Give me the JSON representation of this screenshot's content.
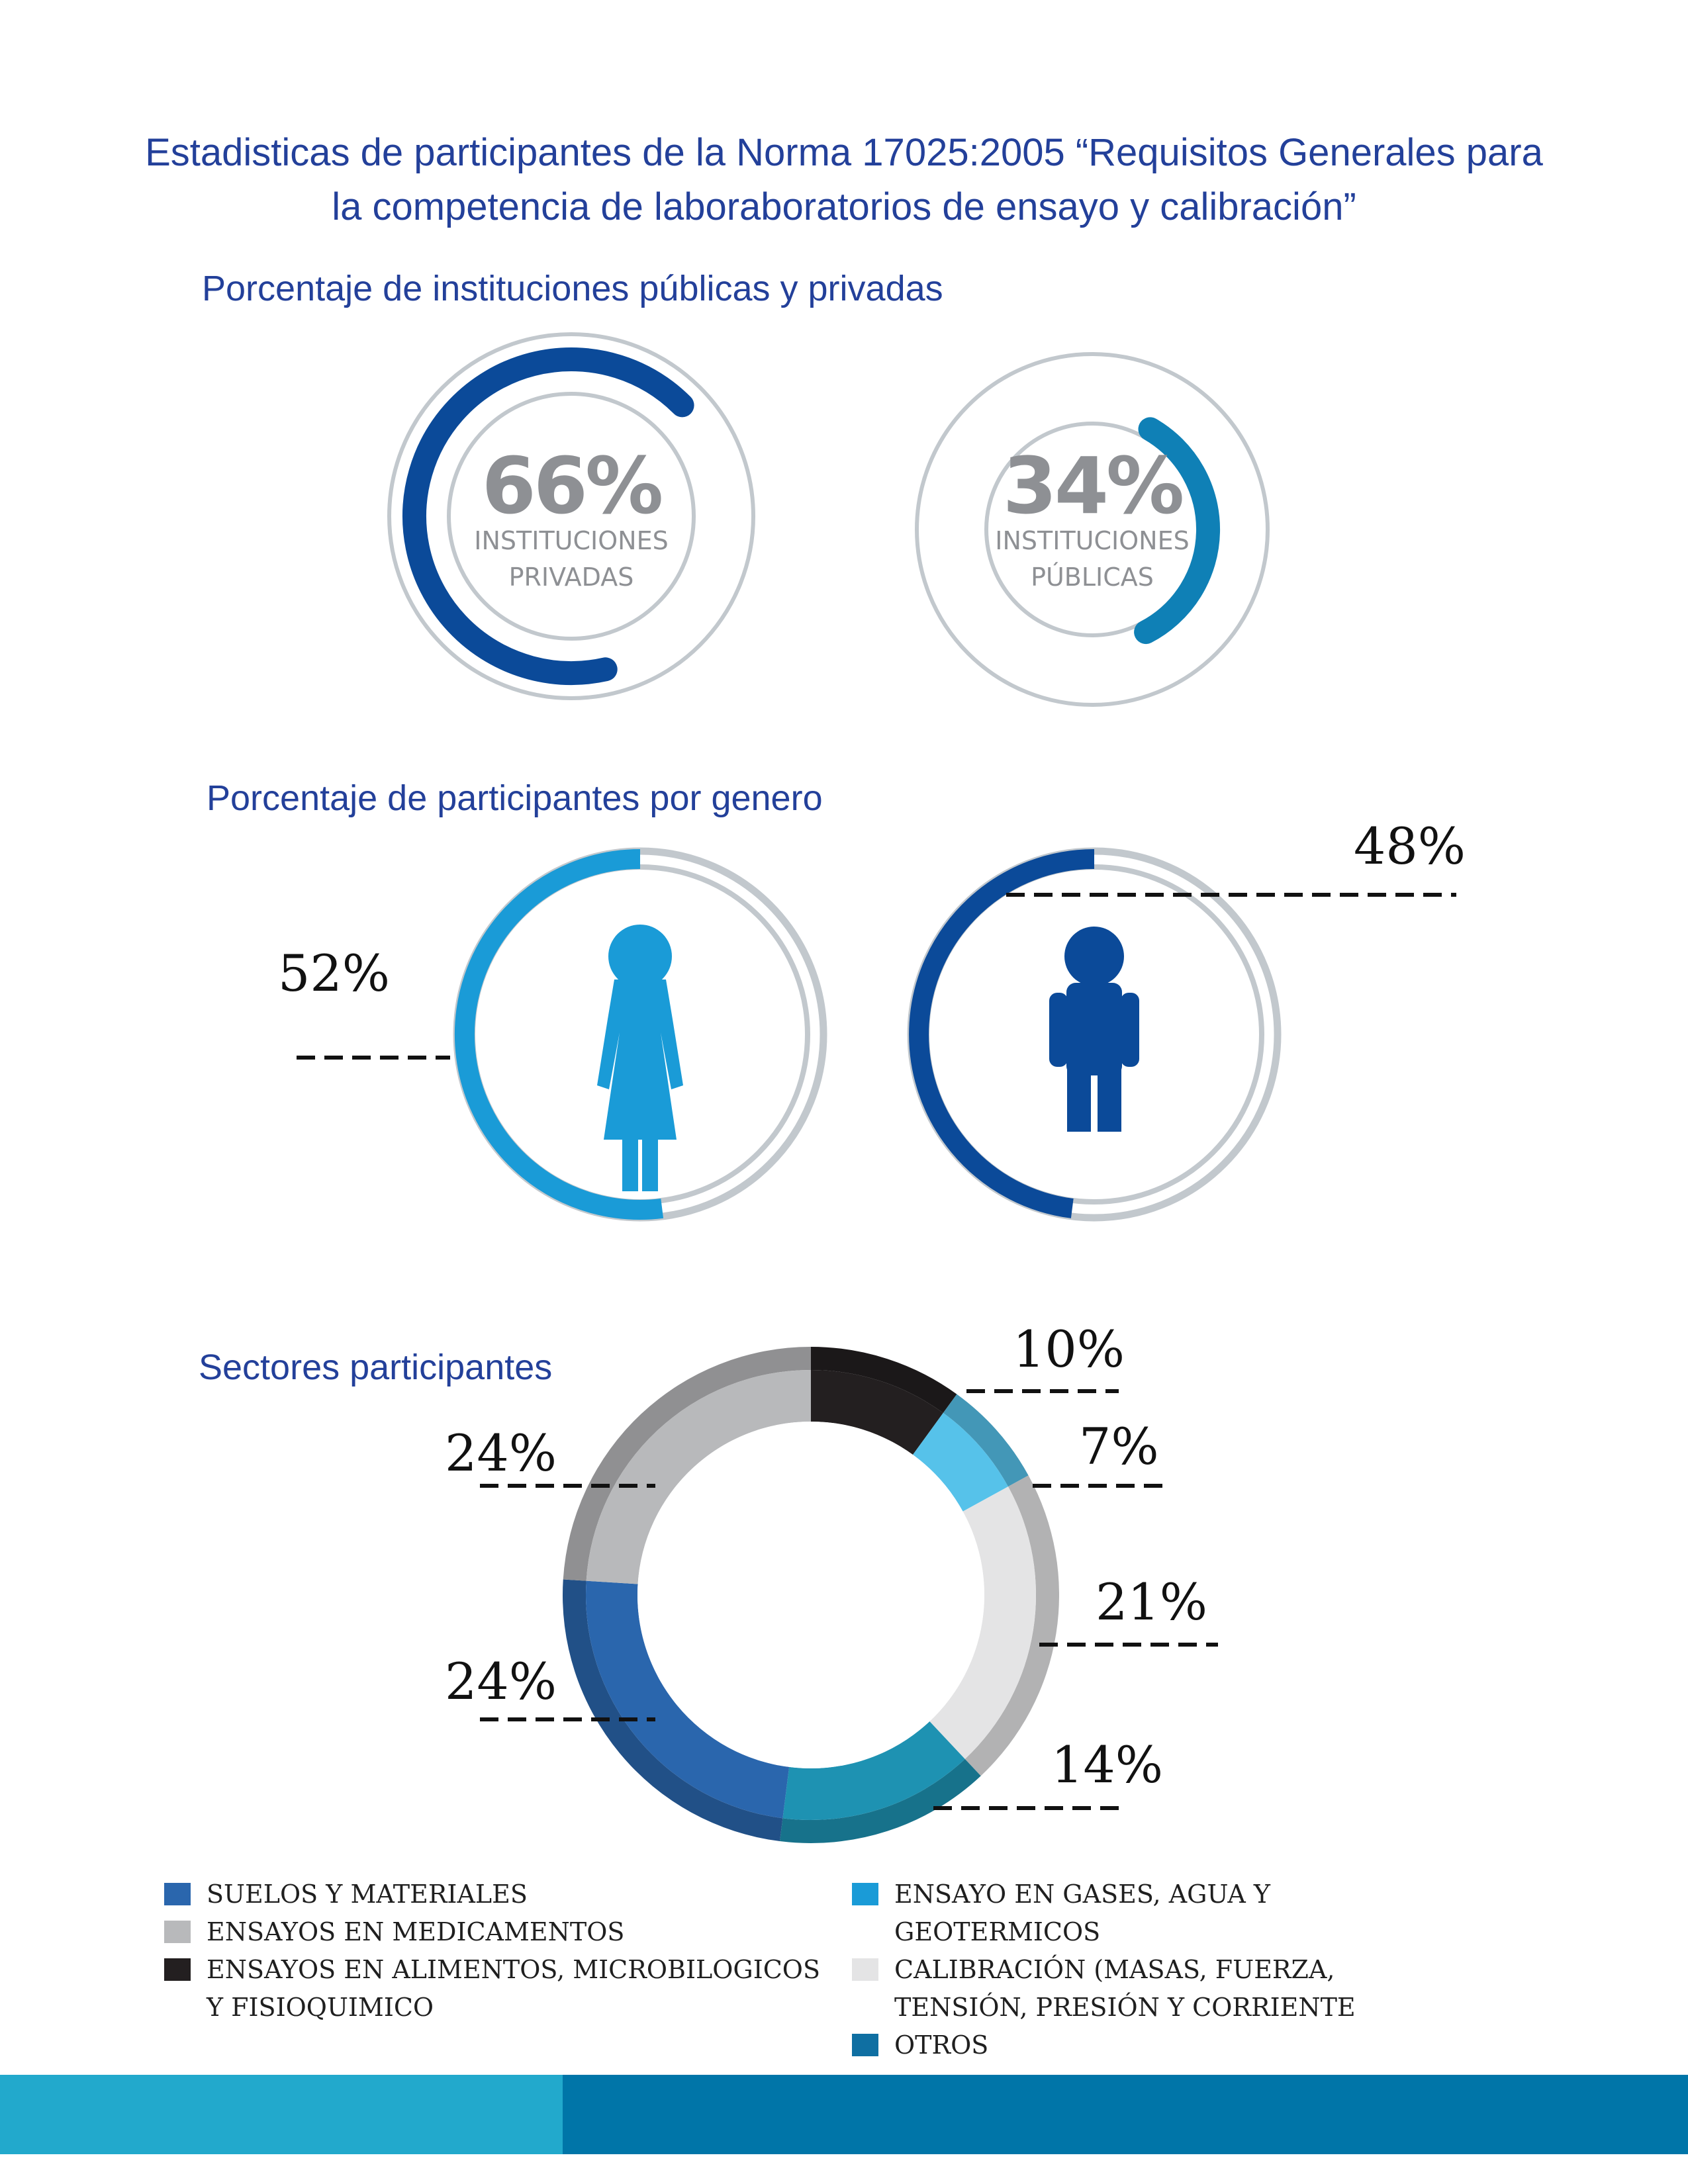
{
  "title": {
    "line1": "Estadisticas de participantes de la Norma 17025:2005 “Requisitos Generales  para",
    "line2": "la competencia de laboraboratorios de ensayo y calibración”"
  },
  "sections": {
    "institutions": "Porcentaje de instituciones públicas y privadas",
    "gender": "Porcentaje de participantes por genero",
    "sectors": "Sectores participantes"
  },
  "colors": {
    "title_blue": "#23409a",
    "dark_blue": "#0b4a99",
    "teal_blue": "#0f80b6",
    "light_blue": "#1a9bd7",
    "ring_gray": "#c2c8cd",
    "number_gray": "#8e9094"
  },
  "chart_data": [
    {
      "type": "pie",
      "style": "progress-ring",
      "categories": [
        "INSTITUCIONES PRIVADAS",
        "INSTITUCIONES PÚBLICAS"
      ],
      "values": [
        66,
        34
      ],
      "labels": [
        {
          "value": "66%",
          "line1": "INSTITUCIONES",
          "line2": "PRIVADAS"
        },
        {
          "value": "34%",
          "line1": "INSTITUCIONES",
          "line2": "PÚBLICAS"
        }
      ]
    },
    {
      "type": "pie",
      "style": "progress-ring",
      "categories": [
        "mujer",
        "hombre"
      ],
      "values": [
        52,
        48
      ],
      "labels": [
        "52%",
        "48%"
      ],
      "icons": [
        "woman-icon",
        "man-icon"
      ]
    },
    {
      "type": "pie",
      "style": "donut",
      "series": [
        {
          "name": "ENSAYOS EN ALIMENTOS, MICROBILOGICOS Y FISIOQUIMICO",
          "value": 10,
          "label": "10%",
          "color": "#231f20"
        },
        {
          "name": "ENSAYO EN GASES, AGUA Y GEOTERMICOS",
          "value": 7,
          "label": "7%",
          "color": "#56c2ea"
        },
        {
          "name": "CALIBRACIÓN (MASAS, FUERZA, TENSIÓN, PRESIÓN Y CORRIENTE",
          "value": 21,
          "label": "21%",
          "color": "#e4e4e5"
        },
        {
          "name": "OTROS",
          "value": 14,
          "label": "14%",
          "color": "#1e92b2"
        },
        {
          "name": "SUELOS Y MATERIALES",
          "value": 24,
          "label": "24%",
          "color": "#2a66ad"
        },
        {
          "name": "ENSAYOS EN MEDICAMENTOS",
          "value": 24,
          "label": "24%",
          "color": "#b8b9bb"
        }
      ]
    }
  ],
  "legend": {
    "left": [
      {
        "label": "SUELOS Y MATERIALES",
        "color": "#2a66ad"
      },
      {
        "label": "ENSAYOS EN MEDICAMENTOS",
        "color": "#b8b9bb"
      },
      {
        "label": "ENSAYOS EN ALIMENTOS, MICROBILOGICOS Y FISIOQUIMICO",
        "color": "#231f20"
      }
    ],
    "right": [
      {
        "label": "ENSAYO EN GASES, AGUA Y GEOTERMICOS",
        "color": "#1a9bd7"
      },
      {
        "label": "CALIBRACIÓN (MASAS, FUERZA, TENSIÓN, PRESIÓN Y CORRIENTE",
        "color": "#e4e4e5"
      },
      {
        "label": "OTROS",
        "color": "#0f6fa2"
      }
    ]
  }
}
